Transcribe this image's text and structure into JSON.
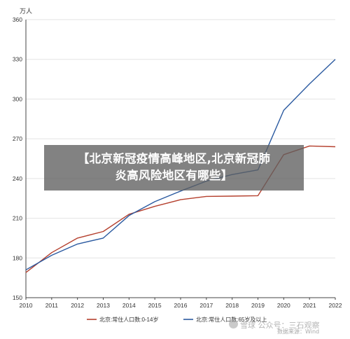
{
  "banner": {
    "line1": "【北京新冠疫情高峰地区,北京新冠肺",
    "line2": "炎高风险地区有哪些】"
  },
  "watermark": {
    "text": "雪球 公众号：三石观察",
    "source": "数据来源：Wind"
  },
  "chart_data": {
    "type": "line",
    "unit_label": "万人",
    "x": [
      2010,
      2011,
      2012,
      2013,
      2014,
      2015,
      2016,
      2017,
      2018,
      2019,
      2020,
      2021,
      2022
    ],
    "ylim": [
      150,
      360
    ],
    "yticks": [
      150,
      180,
      210,
      240,
      270,
      300,
      330,
      360
    ],
    "grid": "horizontal",
    "legend_position": "bottom",
    "series": [
      {
        "name": "北京:常住人口数:0-14岁",
        "color": "#b5402e",
        "values": [
          169,
          184,
          195,
          200,
          213,
          219,
          224,
          226.5,
          226.7,
          227,
          258,
          264.6,
          264
        ]
      },
      {
        "name": "北京:常住人口数:65岁及以上",
        "color": "#2b5aa0",
        "values": [
          171,
          182,
          190.5,
          195,
          212,
          222.5,
          230.5,
          238,
          243,
          246.5,
          291.5,
          311.5,
          330
        ]
      }
    ]
  }
}
